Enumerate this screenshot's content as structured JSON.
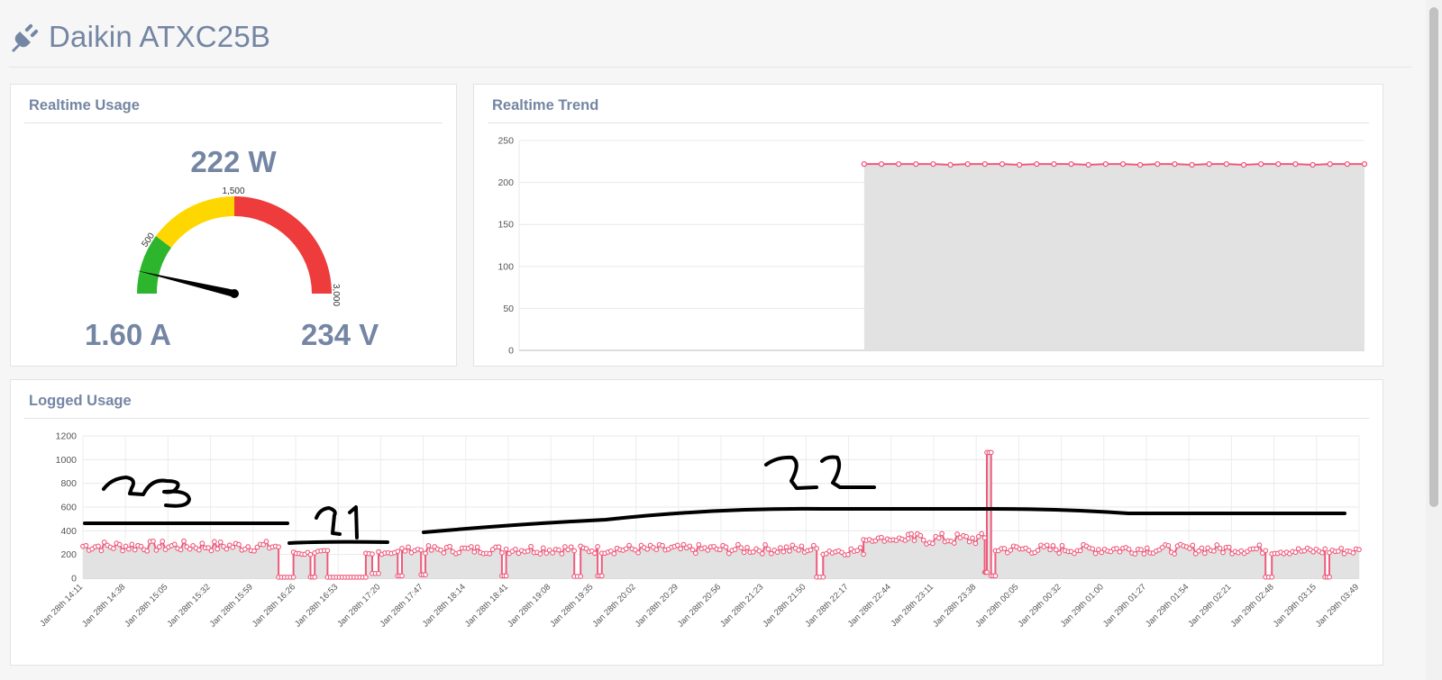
{
  "header": {
    "title": "Daikin ATXC25B",
    "icon": "plug-icon"
  },
  "realtime_usage": {
    "title": "Realtime Usage",
    "power": "222 W",
    "current": "1.60 A",
    "voltage": "234 V",
    "gauge": {
      "value": 222,
      "min": 0,
      "max": 3000,
      "bands": [
        {
          "from": 0,
          "to": 500,
          "color": "#2db52d"
        },
        {
          "from": 500,
          "to": 1500,
          "color": "#ffd700"
        },
        {
          "from": 1500,
          "to": 3000,
          "color": "#ee3b3b"
        }
      ],
      "labels": [
        "500",
        "1,500",
        "3,000"
      ]
    }
  },
  "realtime_trend": {
    "title": "Realtime Trend",
    "chart_data": {
      "type": "area",
      "y_ticks": [
        "0",
        "50",
        "100",
        "150",
        "200",
        "250"
      ],
      "ylim": [
        0,
        250
      ],
      "points": 50,
      "data_start_index": 20,
      "values": [
        222,
        222,
        222,
        222,
        222,
        221,
        222,
        222,
        222,
        221,
        222,
        222,
        222,
        221,
        222,
        222,
        221,
        222,
        222,
        221,
        222,
        222,
        221,
        222,
        222,
        222,
        221,
        222,
        222,
        222
      ],
      "line_color": "#ee5b7c",
      "fill_color": "#e2e2e2"
    }
  },
  "logged_usage": {
    "title": "Logged Usage",
    "chart_data": {
      "type": "area",
      "y_ticks": [
        "0",
        "200",
        "400",
        "600",
        "800",
        "1000",
        "1200"
      ],
      "ylim": [
        0,
        1200
      ],
      "x_ticks": [
        "Jan 28th 14:11",
        "Jan 28th 14:38",
        "Jan 28th 15:05",
        "Jan 28th 15:32",
        "Jan 28th 15:59",
        "Jan 28th 16:26",
        "Jan 28th 16:53",
        "Jan 28th 17:20",
        "Jan 28th 17:47",
        "Jan 28th 18:14",
        "Jan 28th 18:41",
        "Jan 28th 19:08",
        "Jan 28th 19:35",
        "Jan 28th 20:02",
        "Jan 28th 20:29",
        "Jan 28th 20:56",
        "Jan 28th 21:23",
        "Jan 28th 21:50",
        "Jan 28th 22:17",
        "Jan 28th 22:44",
        "Jan 28th 23:11",
        "Jan 28th 23:38",
        "Jan 29th 00:05",
        "Jan 29th 00:32",
        "Jan 29th 01:00",
        "Jan 29th 01:27",
        "Jan 29th 01:54",
        "Jan 29th 02:21",
        "Jan 29th 02:48",
        "Jan 29th 03:15",
        "Jan 29th 03:49"
      ],
      "segments": [
        {
          "x0": 0,
          "x1": 4.6,
          "level": 270,
          "jitter": 45
        },
        {
          "x0": 4.6,
          "x1": 4.95,
          "level": 8,
          "jitter": 0
        },
        {
          "x0": 4.95,
          "x1": 5.35,
          "level": 210,
          "jitter": 15
        },
        {
          "x0": 5.35,
          "x1": 5.45,
          "level": 10,
          "jitter": 0
        },
        {
          "x0": 5.45,
          "x1": 5.75,
          "level": 220,
          "jitter": 15
        },
        {
          "x0": 5.75,
          "x1": 6.65,
          "level": 8,
          "jitter": 0
        },
        {
          "x0": 6.65,
          "x1": 6.8,
          "level": 200,
          "jitter": 15
        },
        {
          "x0": 6.8,
          "x1": 6.95,
          "level": 40,
          "jitter": 0
        },
        {
          "x0": 6.95,
          "x1": 7.4,
          "level": 220,
          "jitter": 20
        },
        {
          "x0": 7.4,
          "x1": 7.5,
          "level": 20,
          "jitter": 0
        },
        {
          "x0": 7.5,
          "x1": 7.95,
          "level": 240,
          "jitter": 25
        },
        {
          "x0": 7.95,
          "x1": 8.05,
          "level": 30,
          "jitter": 0
        },
        {
          "x0": 8.05,
          "x1": 9.85,
          "level": 240,
          "jitter": 35
        },
        {
          "x0": 9.85,
          "x1": 9.95,
          "level": 20,
          "jitter": 0
        },
        {
          "x0": 9.95,
          "x1": 11.55,
          "level": 245,
          "jitter": 40
        },
        {
          "x0": 11.55,
          "x1": 11.7,
          "level": 15,
          "jitter": 0
        },
        {
          "x0": 11.7,
          "x1": 12.1,
          "level": 240,
          "jitter": 35
        },
        {
          "x0": 12.1,
          "x1": 12.2,
          "level": 20,
          "jitter": 0
        },
        {
          "x0": 12.2,
          "x1": 17.25,
          "level": 245,
          "jitter": 40
        },
        {
          "x0": 17.25,
          "x1": 17.4,
          "level": 10,
          "jitter": 0
        },
        {
          "x0": 17.4,
          "x1": 18.35,
          "level": 230,
          "jitter": 35
        },
        {
          "x0": 18.35,
          "x1": 19.4,
          "level": 330,
          "jitter": 20
        },
        {
          "x0": 19.4,
          "x1": 21.2,
          "level": 330,
          "jitter": 50
        },
        {
          "x0": 21.2,
          "x1": 21.25,
          "level": 50,
          "jitter": 0
        },
        {
          "x0": 21.25,
          "x1": 21.35,
          "level": 1060,
          "jitter": 0
        },
        {
          "x0": 21.35,
          "x1": 21.45,
          "level": 20,
          "jitter": 0
        },
        {
          "x0": 21.45,
          "x1": 27.8,
          "level": 245,
          "jitter": 40
        },
        {
          "x0": 27.8,
          "x1": 27.95,
          "level": 10,
          "jitter": 0
        },
        {
          "x0": 27.95,
          "x1": 29.2,
          "level": 230,
          "jitter": 30
        },
        {
          "x0": 29.2,
          "x1": 29.3,
          "level": 10,
          "jitter": 0
        },
        {
          "x0": 29.3,
          "x1": 30,
          "level": 230,
          "jitter": 30
        }
      ],
      "line_color": "#ee5b7c",
      "fill_color": "#e2e2e2"
    },
    "annotations": {
      "a23": "23",
      "a21": "21",
      "a22": "22"
    }
  }
}
